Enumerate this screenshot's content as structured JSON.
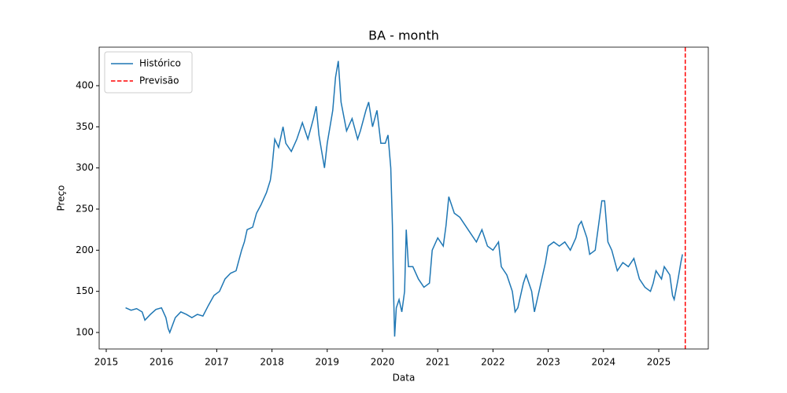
{
  "chart_data": {
    "type": "line",
    "title": "BA - month",
    "xlabel": "Data",
    "ylabel": "Preço",
    "xlim": [
      2014.872,
      2025.897
    ],
    "xticks": [
      2015,
      2016,
      2017,
      2018,
      2019,
      2020,
      2021,
      2022,
      2023,
      2024,
      2025
    ],
    "ylim": [
      79.94,
      446.8
    ],
    "yticks": [
      100,
      150,
      200,
      250,
      300,
      350,
      400
    ],
    "legend": "upper left",
    "series": [
      {
        "name": "Histórico",
        "color": "#1f77b4",
        "x": [
          2015.35,
          2015.45,
          2015.55,
          2015.65,
          2015.7,
          2015.8,
          2015.9,
          2016.0,
          2016.08,
          2016.12,
          2016.15,
          2016.25,
          2016.35,
          2016.45,
          2016.55,
          2016.65,
          2016.75,
          2016.85,
          2016.95,
          2017.05,
          2017.15,
          2017.25,
          2017.35,
          2017.45,
          2017.5,
          2017.55,
          2017.65,
          2017.72,
          2017.8,
          2017.9,
          2017.97,
          2018.0,
          2018.05,
          2018.12,
          2018.2,
          2018.25,
          2018.35,
          2018.45,
          2018.55,
          2018.65,
          2018.75,
          2018.8,
          2018.85,
          2018.9,
          2018.95,
          2019.0,
          2019.1,
          2019.15,
          2019.2,
          2019.25,
          2019.35,
          2019.45,
          2019.55,
          2019.6,
          2019.7,
          2019.75,
          2019.82,
          2019.9,
          2019.97,
          2020.05,
          2020.1,
          2020.15,
          2020.18,
          2020.2,
          2020.22,
          2020.25,
          2020.3,
          2020.35,
          2020.4,
          2020.43,
          2020.47,
          2020.55,
          2020.65,
          2020.75,
          2020.85,
          2020.9,
          2021.0,
          2021.1,
          2021.15,
          2021.2,
          2021.3,
          2021.4,
          2021.5,
          2021.6,
          2021.7,
          2021.8,
          2021.9,
          2022.0,
          2022.1,
          2022.15,
          2022.25,
          2022.35,
          2022.4,
          2022.45,
          2022.55,
          2022.6,
          2022.7,
          2022.75,
          2022.85,
          2022.95,
          2023.0,
          2023.1,
          2023.2,
          2023.3,
          2023.4,
          2023.5,
          2023.55,
          2023.6,
          2023.7,
          2023.75,
          2023.85,
          2023.92,
          2023.97,
          2024.02,
          2024.08,
          2024.15,
          2024.25,
          2024.35,
          2024.45,
          2024.55,
          2024.65,
          2024.75,
          2024.85,
          2024.9,
          2024.95,
          2025.05,
          2025.1,
          2025.2,
          2025.25,
          2025.28,
          2025.35,
          2025.4,
          2025.43
        ],
        "values": [
          130,
          127,
          129,
          125,
          115,
          122,
          128,
          130,
          118,
          105,
          100,
          118,
          125,
          122,
          118,
          122,
          120,
          133,
          145,
          150,
          165,
          172,
          175,
          200,
          210,
          225,
          228,
          245,
          255,
          270,
          285,
          300,
          335,
          325,
          350,
          330,
          320,
          335,
          355,
          335,
          360,
          375,
          340,
          320,
          300,
          330,
          370,
          410,
          430,
          380,
          345,
          360,
          335,
          345,
          370,
          380,
          350,
          370,
          330,
          330,
          340,
          300,
          230,
          150,
          95,
          130,
          140,
          125,
          150,
          225,
          180,
          180,
          165,
          155,
          160,
          200,
          215,
          205,
          230,
          265,
          245,
          240,
          230,
          220,
          210,
          225,
          205,
          200,
          210,
          180,
          170,
          150,
          125,
          130,
          160,
          170,
          150,
          125,
          155,
          185,
          205,
          210,
          205,
          210,
          200,
          215,
          230,
          235,
          215,
          195,
          200,
          235,
          260,
          260,
          210,
          200,
          175,
          185,
          180,
          190,
          165,
          155,
          150,
          160,
          175,
          165,
          180,
          170,
          145,
          140,
          165,
          185,
          195
        ]
      }
    ],
    "vlines": [
      {
        "name": "Previsão",
        "x": 2025.48,
        "color": "#ff0000",
        "style": "dashed"
      }
    ]
  }
}
